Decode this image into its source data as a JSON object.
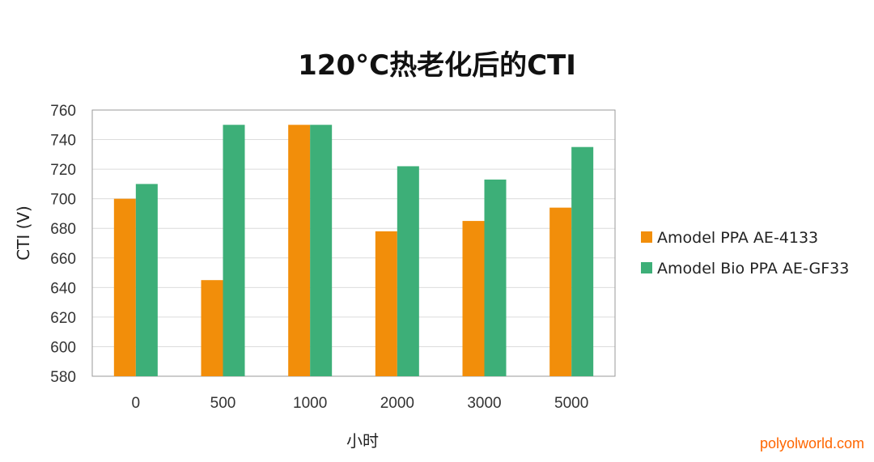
{
  "chart_data": {
    "type": "bar",
    "title": "120°C热老化后的CTI",
    "xlabel": "小时",
    "ylabel": "CTI (V)",
    "categories": [
      "0",
      "500",
      "1000",
      "2000",
      "3000",
      "5000"
    ],
    "ylim": [
      580,
      760
    ],
    "yticks": [
      580,
      600,
      620,
      640,
      660,
      680,
      700,
      720,
      740,
      760
    ],
    "grid": true,
    "legend_position": "right",
    "series": [
      {
        "name": "Amodel PPA AE-4133",
        "color": "#f28e0a",
        "values": [
          700,
          645,
          750,
          678,
          685,
          694
        ]
      },
      {
        "name": "Amodel Bio PPA AE-GF33",
        "color": "#3daf78",
        "values": [
          710,
          750,
          750,
          722,
          713,
          735
        ]
      }
    ]
  },
  "watermark": "polyolworld.com"
}
